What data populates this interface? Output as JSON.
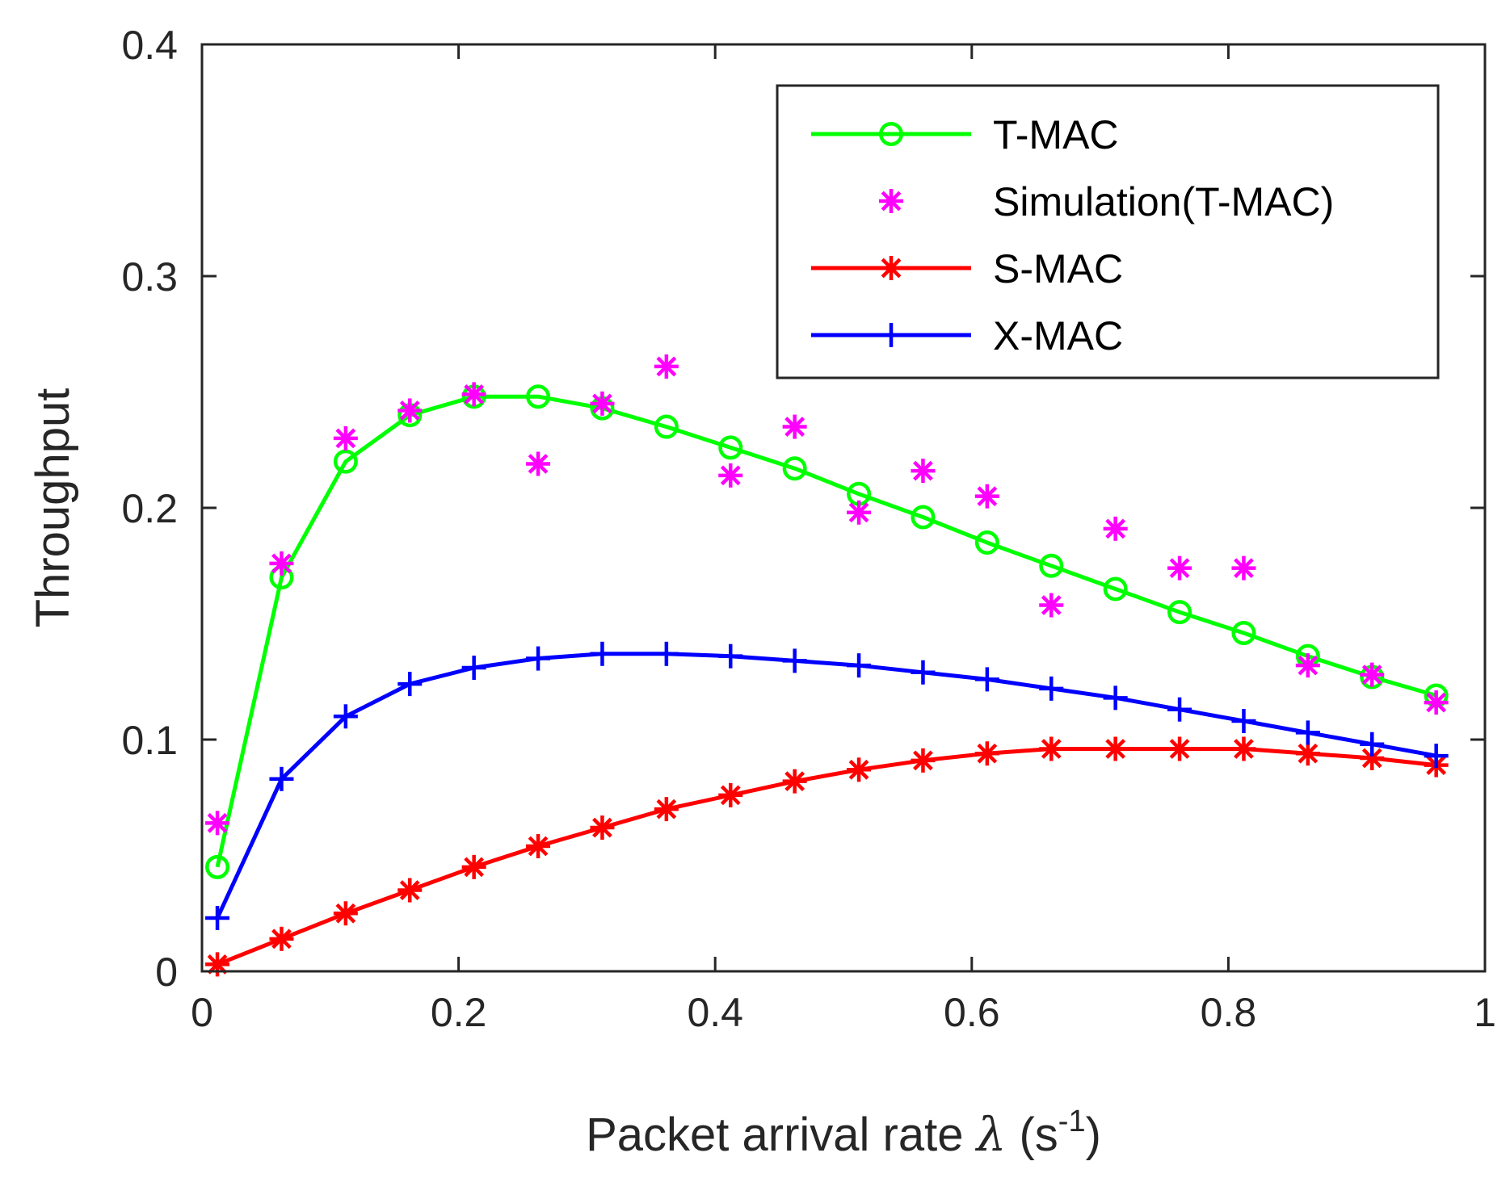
{
  "chart_data": {
    "type": "line",
    "xlabel": "Packet arrival rate λ (s-1)",
    "xlabel_parts": {
      "main": "Packet arrival rate ",
      "symbol": "λ",
      "open": " (s",
      "sup": "-1",
      "close": ")"
    },
    "ylabel": "Throughput",
    "xlim": [
      0,
      1
    ],
    "ylim": [
      0,
      0.4
    ],
    "xticks": [
      0,
      0.2,
      0.4,
      0.6,
      0.8,
      1
    ],
    "xtick_labels": [
      "0",
      "0.2",
      "0.4",
      "0.6",
      "0.8",
      "1"
    ],
    "yticks": [
      0,
      0.1,
      0.2,
      0.3,
      0.4
    ],
    "ytick_labels": [
      "0",
      "0.1",
      "0.2",
      "0.3",
      "0.4"
    ],
    "grid": false,
    "legend_position": "top-right",
    "x": [
      0.012,
      0.062,
      0.112,
      0.162,
      0.212,
      0.262,
      0.312,
      0.362,
      0.412,
      0.462,
      0.512,
      0.562,
      0.612,
      0.662,
      0.712,
      0.762,
      0.812,
      0.862,
      0.912,
      0.962
    ],
    "series": [
      {
        "name": "T-MAC",
        "color": "#00ff00",
        "marker": "circle",
        "line": true,
        "values": [
          0.045,
          0.17,
          0.22,
          0.24,
          0.248,
          0.248,
          0.243,
          0.235,
          0.226,
          0.217,
          0.206,
          0.196,
          0.185,
          0.175,
          0.165,
          0.155,
          0.146,
          0.136,
          0.127,
          0.119
        ]
      },
      {
        "name": "Simulation(T-MAC)",
        "color": "#ff00ff",
        "marker": "asterisk",
        "line": false,
        "values": [
          0.064,
          0.176,
          0.23,
          0.242,
          0.249,
          0.219,
          0.245,
          0.261,
          0.214,
          0.235,
          0.198,
          0.216,
          0.205,
          0.158,
          0.191,
          0.174,
          0.174,
          0.132,
          0.128,
          0.116
        ]
      },
      {
        "name": "S-MAC",
        "color": "#ff0000",
        "marker": "asterisk",
        "line": true,
        "values": [
          0.003,
          0.014,
          0.025,
          0.035,
          0.045,
          0.054,
          0.062,
          0.07,
          0.076,
          0.082,
          0.087,
          0.091,
          0.094,
          0.096,
          0.096,
          0.096,
          0.096,
          0.094,
          0.092,
          0.089
        ]
      },
      {
        "name": "X-MAC",
        "color": "#0000ff",
        "marker": "plus",
        "line": true,
        "values": [
          0.023,
          0.083,
          0.11,
          0.124,
          0.131,
          0.135,
          0.137,
          0.137,
          0.136,
          0.134,
          0.132,
          0.129,
          0.126,
          0.122,
          0.118,
          0.113,
          0.108,
          0.103,
          0.098,
          0.093
        ]
      }
    ]
  }
}
